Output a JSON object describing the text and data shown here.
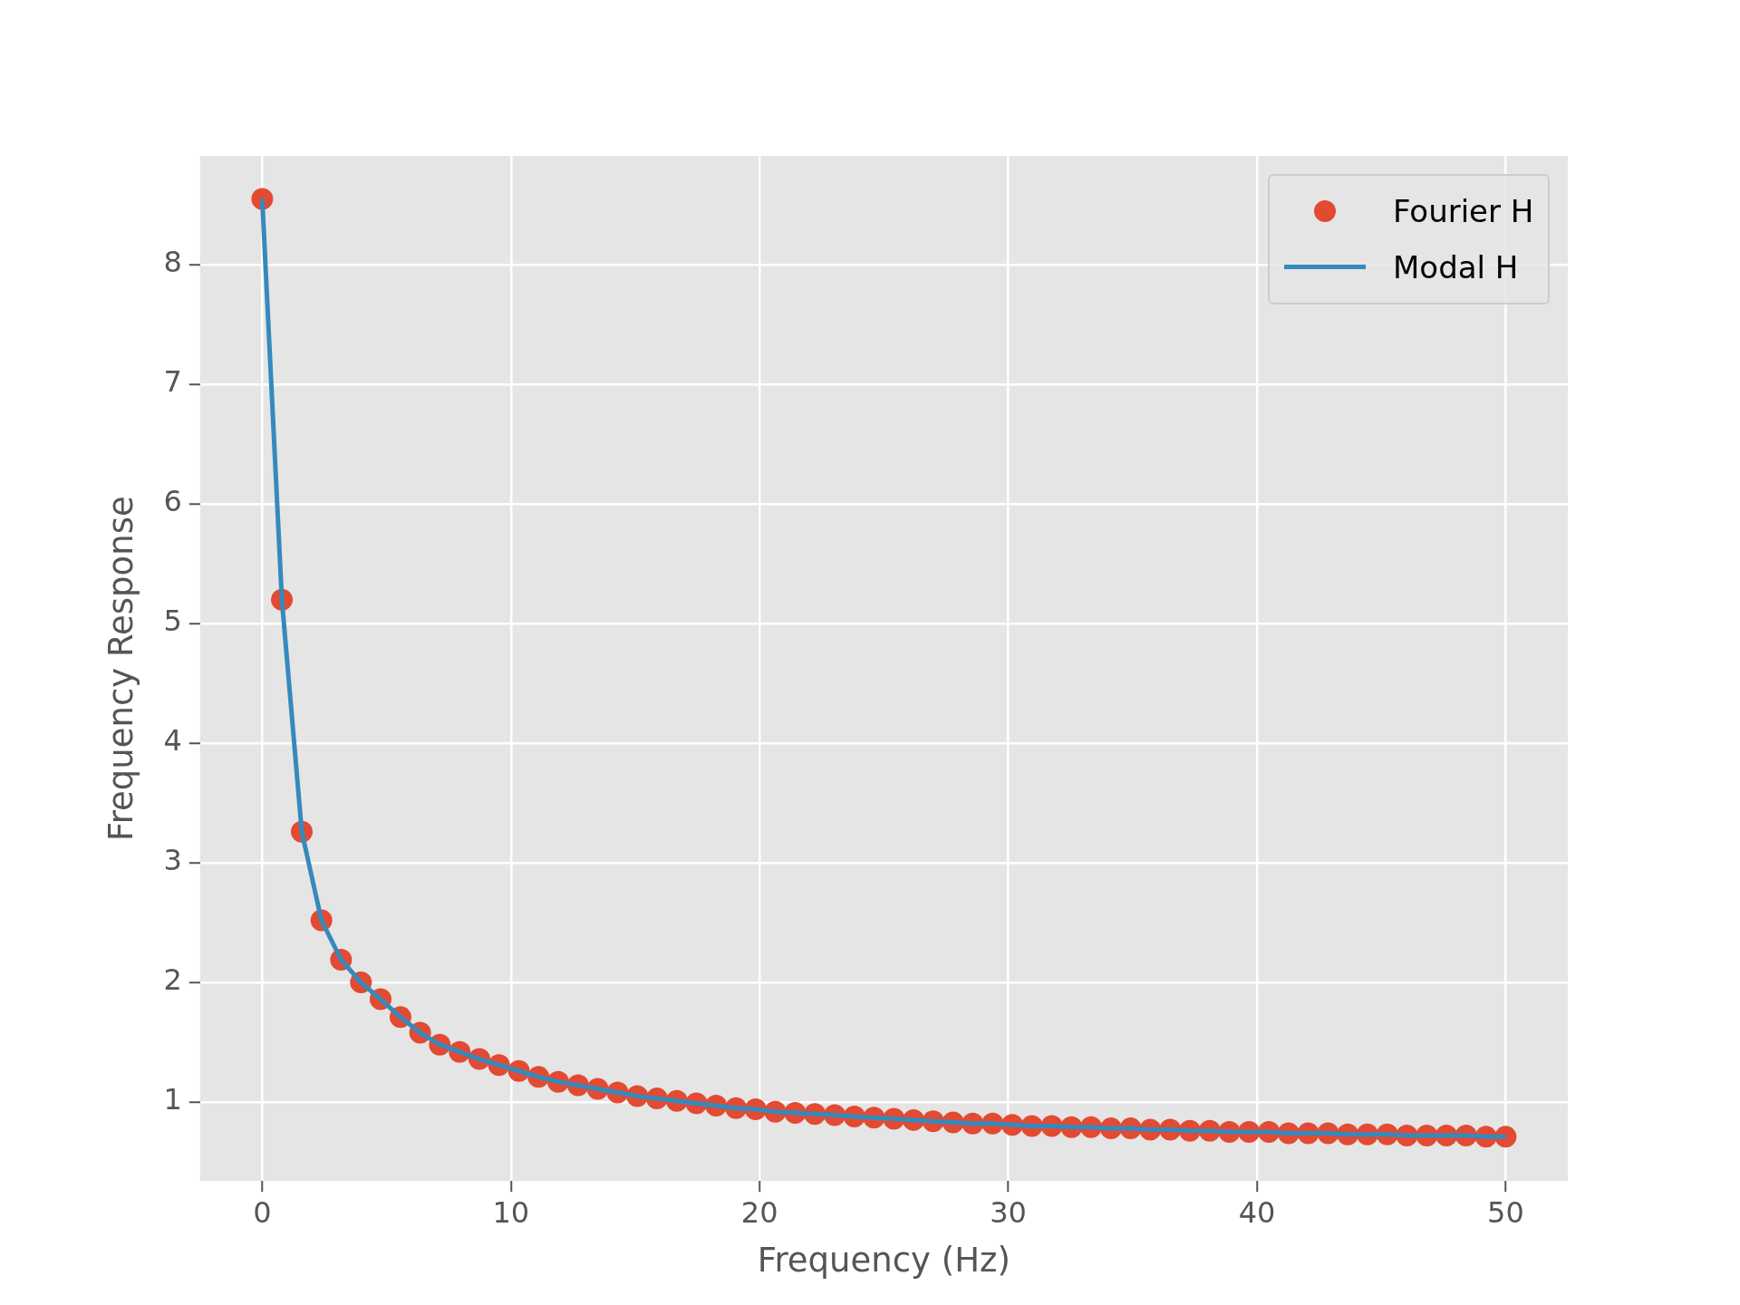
{
  "chart_data": {
    "type": "line",
    "xlabel": "Frequency (Hz)",
    "ylabel": "Frequency Response",
    "x": [
      0,
      0.79,
      1.59,
      2.38,
      3.17,
      3.97,
      4.76,
      5.56,
      6.35,
      7.14,
      7.94,
      8.73,
      9.52,
      10.32,
      11.11,
      11.9,
      12.7,
      13.49,
      14.29,
      15.08,
      15.87,
      16.67,
      17.46,
      18.25,
      19.05,
      19.84,
      20.63,
      21.43,
      22.22,
      23.02,
      23.81,
      24.6,
      25.4,
      26.19,
      26.98,
      27.78,
      28.57,
      29.37,
      30.16,
      30.95,
      31.75,
      32.54,
      33.33,
      34.13,
      34.92,
      35.71,
      36.51,
      37.3,
      38.1,
      38.89,
      39.68,
      40.48,
      41.27,
      42.06,
      42.86,
      43.65,
      44.44,
      45.24,
      46.03,
      46.83,
      47.62,
      48.41,
      49.21,
      50
    ],
    "series": [
      {
        "name": "Fourier H",
        "type": "scatter",
        "marker": "circle",
        "color": "#e24a33",
        "values": [
          8.55,
          5.2,
          3.26,
          2.52,
          2.19,
          2.0,
          1.86,
          1.71,
          1.58,
          1.48,
          1.42,
          1.36,
          1.31,
          1.26,
          1.21,
          1.17,
          1.14,
          1.11,
          1.08,
          1.05,
          1.03,
          1.01,
          0.99,
          0.97,
          0.95,
          0.94,
          0.92,
          0.91,
          0.9,
          0.89,
          0.88,
          0.87,
          0.86,
          0.85,
          0.84,
          0.83,
          0.82,
          0.82,
          0.81,
          0.8,
          0.8,
          0.79,
          0.79,
          0.78,
          0.78,
          0.77,
          0.77,
          0.76,
          0.76,
          0.75,
          0.75,
          0.75,
          0.74,
          0.74,
          0.74,
          0.73,
          0.73,
          0.73,
          0.72,
          0.72,
          0.72,
          0.72,
          0.71,
          0.71
        ]
      },
      {
        "name": "Modal H",
        "marker": "none",
        "line_style": "solid",
        "color": "#348abd",
        "values": [
          8.55,
          5.2,
          3.26,
          2.52,
          2.19,
          2.0,
          1.86,
          1.71,
          1.58,
          1.48,
          1.42,
          1.36,
          1.31,
          1.26,
          1.21,
          1.17,
          1.14,
          1.11,
          1.08,
          1.05,
          1.03,
          1.01,
          0.99,
          0.97,
          0.95,
          0.94,
          0.92,
          0.91,
          0.9,
          0.89,
          0.88,
          0.87,
          0.86,
          0.85,
          0.84,
          0.83,
          0.82,
          0.82,
          0.81,
          0.8,
          0.8,
          0.79,
          0.79,
          0.78,
          0.78,
          0.77,
          0.77,
          0.76,
          0.76,
          0.75,
          0.75,
          0.75,
          0.74,
          0.74,
          0.74,
          0.73,
          0.73,
          0.73,
          0.72,
          0.72,
          0.72,
          0.72,
          0.71,
          0.71
        ]
      }
    ],
    "xlim": [
      -2.5,
      52.5
    ],
    "xticks": [
      0,
      10,
      20,
      30,
      40,
      50
    ],
    "ylim": [
      0.34,
      8.91
    ],
    "yticks": [
      1,
      2,
      3,
      4,
      5,
      6,
      7,
      8
    ],
    "grid": true,
    "legend": "top right"
  }
}
